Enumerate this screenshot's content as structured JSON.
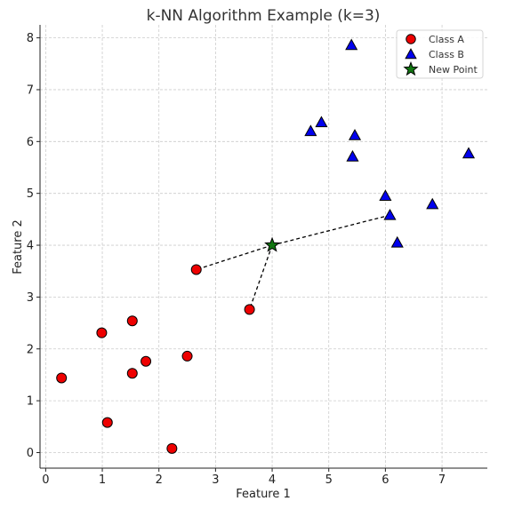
{
  "chart_data": {
    "type": "scatter",
    "title": "k-NN Algorithm Example (k=3)",
    "xlabel": "Feature 1",
    "ylabel": "Feature 2",
    "xlim": [
      -0.1,
      7.8
    ],
    "ylim": [
      -0.3,
      8.25
    ],
    "xticks": [
      "0",
      "1",
      "2",
      "3",
      "4",
      "5",
      "6",
      "7"
    ],
    "yticks": [
      "0",
      "1",
      "2",
      "3",
      "4",
      "5",
      "6",
      "7",
      "8"
    ],
    "grid": true,
    "legend_position": "top-right",
    "series": [
      {
        "name": "Class A",
        "marker": "circle",
        "color": "#ee0000",
        "points": [
          {
            "x": 0.28,
            "y": 1.44
          },
          {
            "x": 0.99,
            "y": 2.31
          },
          {
            "x": 1.09,
            "y": 0.58
          },
          {
            "x": 1.53,
            "y": 2.54
          },
          {
            "x": 1.53,
            "y": 1.53
          },
          {
            "x": 1.77,
            "y": 1.76
          },
          {
            "x": 2.23,
            "y": 0.08
          },
          {
            "x": 2.5,
            "y": 1.86
          },
          {
            "x": 2.66,
            "y": 3.53
          },
          {
            "x": 3.6,
            "y": 2.76
          }
        ]
      },
      {
        "name": "Class B",
        "marker": "triangle",
        "color": "#0000ee",
        "points": [
          {
            "x": 4.68,
            "y": 6.2
          },
          {
            "x": 4.87,
            "y": 6.37
          },
          {
            "x": 5.4,
            "y": 7.86
          },
          {
            "x": 5.42,
            "y": 5.71
          },
          {
            "x": 5.46,
            "y": 6.12
          },
          {
            "x": 6.0,
            "y": 4.95
          },
          {
            "x": 6.08,
            "y": 4.58
          },
          {
            "x": 6.21,
            "y": 4.05
          },
          {
            "x": 6.83,
            "y": 4.79
          },
          {
            "x": 7.47,
            "y": 5.77
          }
        ]
      },
      {
        "name": "New Point",
        "marker": "star",
        "color": "#117711",
        "points": [
          {
            "x": 4.0,
            "y": 4.0
          }
        ]
      }
    ],
    "neighbor_links": [
      {
        "from": [
          4.0,
          4.0
        ],
        "to": [
          2.66,
          3.53
        ]
      },
      {
        "from": [
          4.0,
          4.0
        ],
        "to": [
          3.6,
          2.76
        ]
      },
      {
        "from": [
          4.0,
          4.0
        ],
        "to": [
          6.08,
          4.58
        ]
      }
    ]
  }
}
